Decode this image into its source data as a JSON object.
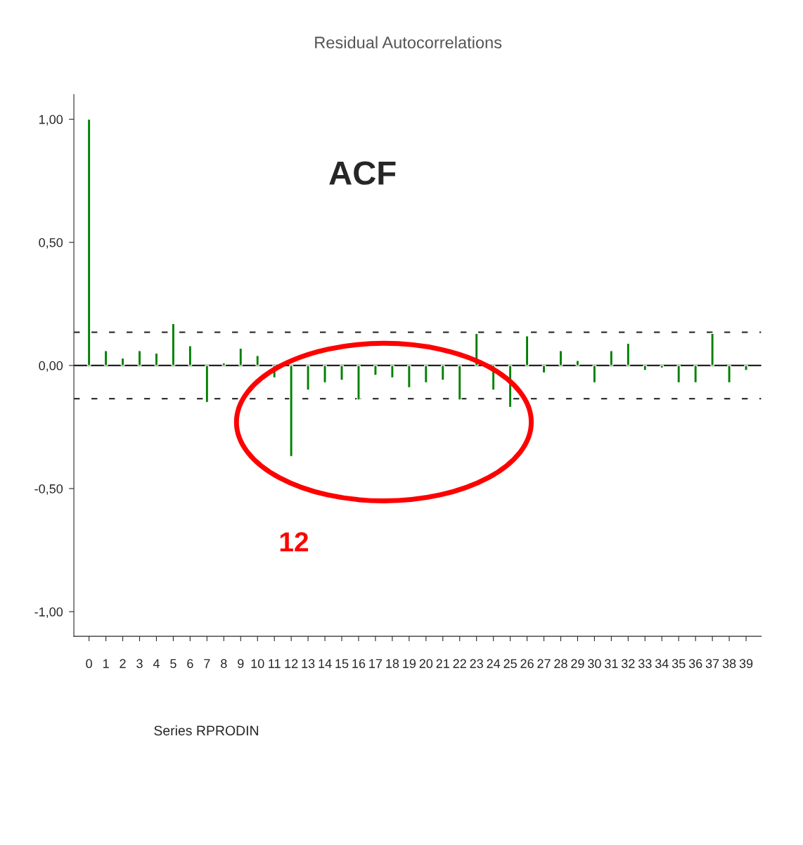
{
  "chart_data": {
    "type": "bar",
    "title": "Residual Autocorrelations",
    "categories": [
      "0",
      "1",
      "2",
      "3",
      "4",
      "5",
      "6",
      "7",
      "8",
      "9",
      "10",
      "11",
      "12",
      "13",
      "14",
      "15",
      "16",
      "17",
      "18",
      "19",
      "20",
      "21",
      "22",
      "23",
      "24",
      "25",
      "26",
      "27",
      "28",
      "29",
      "30",
      "31",
      "32",
      "33",
      "34",
      "35",
      "36",
      "37",
      "38",
      "39"
    ],
    "series": [
      {
        "color": "#008000",
        "values": [
          1.0,
          0.06,
          0.03,
          0.06,
          0.05,
          0.17,
          0.08,
          -0.15,
          0.01,
          0.07,
          0.04,
          -0.05,
          -0.37,
          -0.1,
          -0.07,
          -0.06,
          -0.14,
          -0.04,
          -0.05,
          -0.09,
          -0.07,
          -0.06,
          -0.14,
          0.13,
          -0.1,
          -0.17,
          0.12,
          -0.03,
          0.06,
          0.02,
          -0.07,
          0.06,
          0.09,
          -0.02,
          -0.01,
          -0.07,
          -0.07,
          0.13,
          -0.07,
          -0.02
        ]
      }
    ],
    "ylim": [
      -1.1,
      1.1
    ],
    "yticks": [
      {
        "value": -1,
        "label": "-1,00"
      },
      {
        "value": -0.5,
        "label": "-0,50"
      },
      {
        "value": 0,
        "label": "0,00"
      },
      {
        "value": 0.5,
        "label": "0,50"
      },
      {
        "value": 1,
        "label": "1,00"
      }
    ],
    "ref_lines": [
      {
        "axis": "y",
        "value": 0.135,
        "color": "#333333",
        "line_style": "dashed"
      },
      {
        "axis": "y",
        "value": -0.135,
        "color": "#333333",
        "line_style": "dashed"
      },
      {
        "axis": "y",
        "value": 0,
        "color": "#222222",
        "line_style": "solid"
      }
    ],
    "annotations": [
      "ACF",
      "12",
      "Series RPRODIN"
    ],
    "grid": false,
    "legend": false
  }
}
